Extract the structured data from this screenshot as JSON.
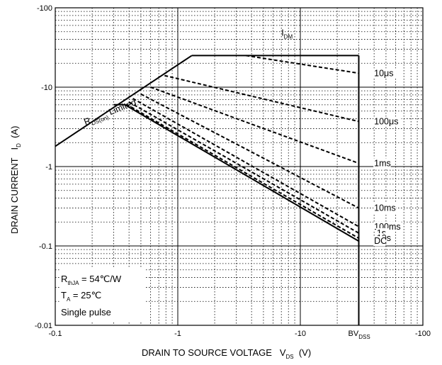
{
  "chart_data": {
    "type": "line",
    "title": "",
    "x_scale": "log",
    "y_scale": "log",
    "xlim": [
      0.1,
      100
    ],
    "ylim": [
      0.01,
      100
    ],
    "grid": true,
    "x_ticks": [
      "-0.1",
      "-1",
      "-10",
      "-100"
    ],
    "y_ticks": [
      "-100",
      "-10",
      "-1",
      "-0.1",
      "-0.01"
    ],
    "xlabel": {
      "main": "DRAIN TO SOURCE VOLTAGE",
      "sym": "V",
      "sub": "DS",
      "unit": "(V)"
    },
    "ylabel": {
      "main": "DRAIN CURRENT",
      "sym": "I",
      "sub": "D",
      "unit": "(A)"
    },
    "bvdss": {
      "main": "BV",
      "sub": "DSS",
      "x": 30
    },
    "idm": {
      "main": "I",
      "sub": "DM",
      "value": 25
    },
    "rds_label": {
      "main": "R",
      "sub": "DS(on)",
      "suffix": " Limited"
    },
    "notes": [
      {
        "main": "R",
        "sub": "thJA",
        "rest": " = 54℃/W"
      },
      {
        "main": "T",
        "sub": "A",
        "rest": " = 25℃"
      },
      {
        "main": "Single pulse",
        "sub": "",
        "rest": ""
      }
    ],
    "series": [
      {
        "name": "RDS(on) Limited",
        "style": "solid",
        "points": [
          [
            0.1,
            1.8
          ],
          [
            1.3,
            25
          ]
        ]
      },
      {
        "name": "IDM",
        "style": "solid",
        "points": [
          [
            1.3,
            25
          ],
          [
            30,
            25
          ]
        ]
      },
      {
        "name": "BVDSS",
        "style": "solid",
        "points": [
          [
            30,
            25
          ],
          [
            30,
            0.01
          ]
        ]
      },
      {
        "name": "10μs",
        "style": "dashed",
        "points": [
          [
            3.6,
            25
          ],
          [
            30,
            15
          ]
        ],
        "label_at": [
          40,
          15
        ]
      },
      {
        "name": "100μs",
        "style": "dashed",
        "points": [
          [
            0.78,
            14
          ],
          [
            30,
            3.7
          ]
        ],
        "label_at": [
          40,
          3.7
        ]
      },
      {
        "name": "1ms",
        "style": "dashed",
        "points": [
          [
            0.6,
            10
          ],
          [
            30,
            1.1
          ]
        ],
        "label_at": [
          40,
          1.1
        ]
      },
      {
        "name": "10ms",
        "style": "dashed",
        "points": [
          [
            0.5,
            8.2
          ],
          [
            30,
            0.3
          ]
        ],
        "label_at": [
          40,
          0.3
        ]
      },
      {
        "name": "100ms",
        "style": "dashed",
        "points": [
          [
            0.43,
            7.2
          ],
          [
            30,
            0.175
          ]
        ],
        "label_at": [
          40,
          0.175
        ]
      },
      {
        "name": "1s",
        "style": "dashed",
        "points": [
          [
            0.4,
            6.5
          ],
          [
            30,
            0.145
          ]
        ],
        "label_at": [
          42,
          0.145
        ]
      },
      {
        "name": "10s",
        "style": "dashed",
        "points": [
          [
            0.38,
            6.1
          ],
          [
            30,
            0.125
          ]
        ],
        "label_at": [
          42,
          0.125
        ]
      },
      {
        "name": "DC",
        "style": "solid",
        "points": [
          [
            0.3,
            6
          ],
          [
            0.37,
            6
          ],
          [
            30,
            0.115
          ]
        ],
        "label_at": [
          40,
          0.115
        ]
      }
    ]
  }
}
